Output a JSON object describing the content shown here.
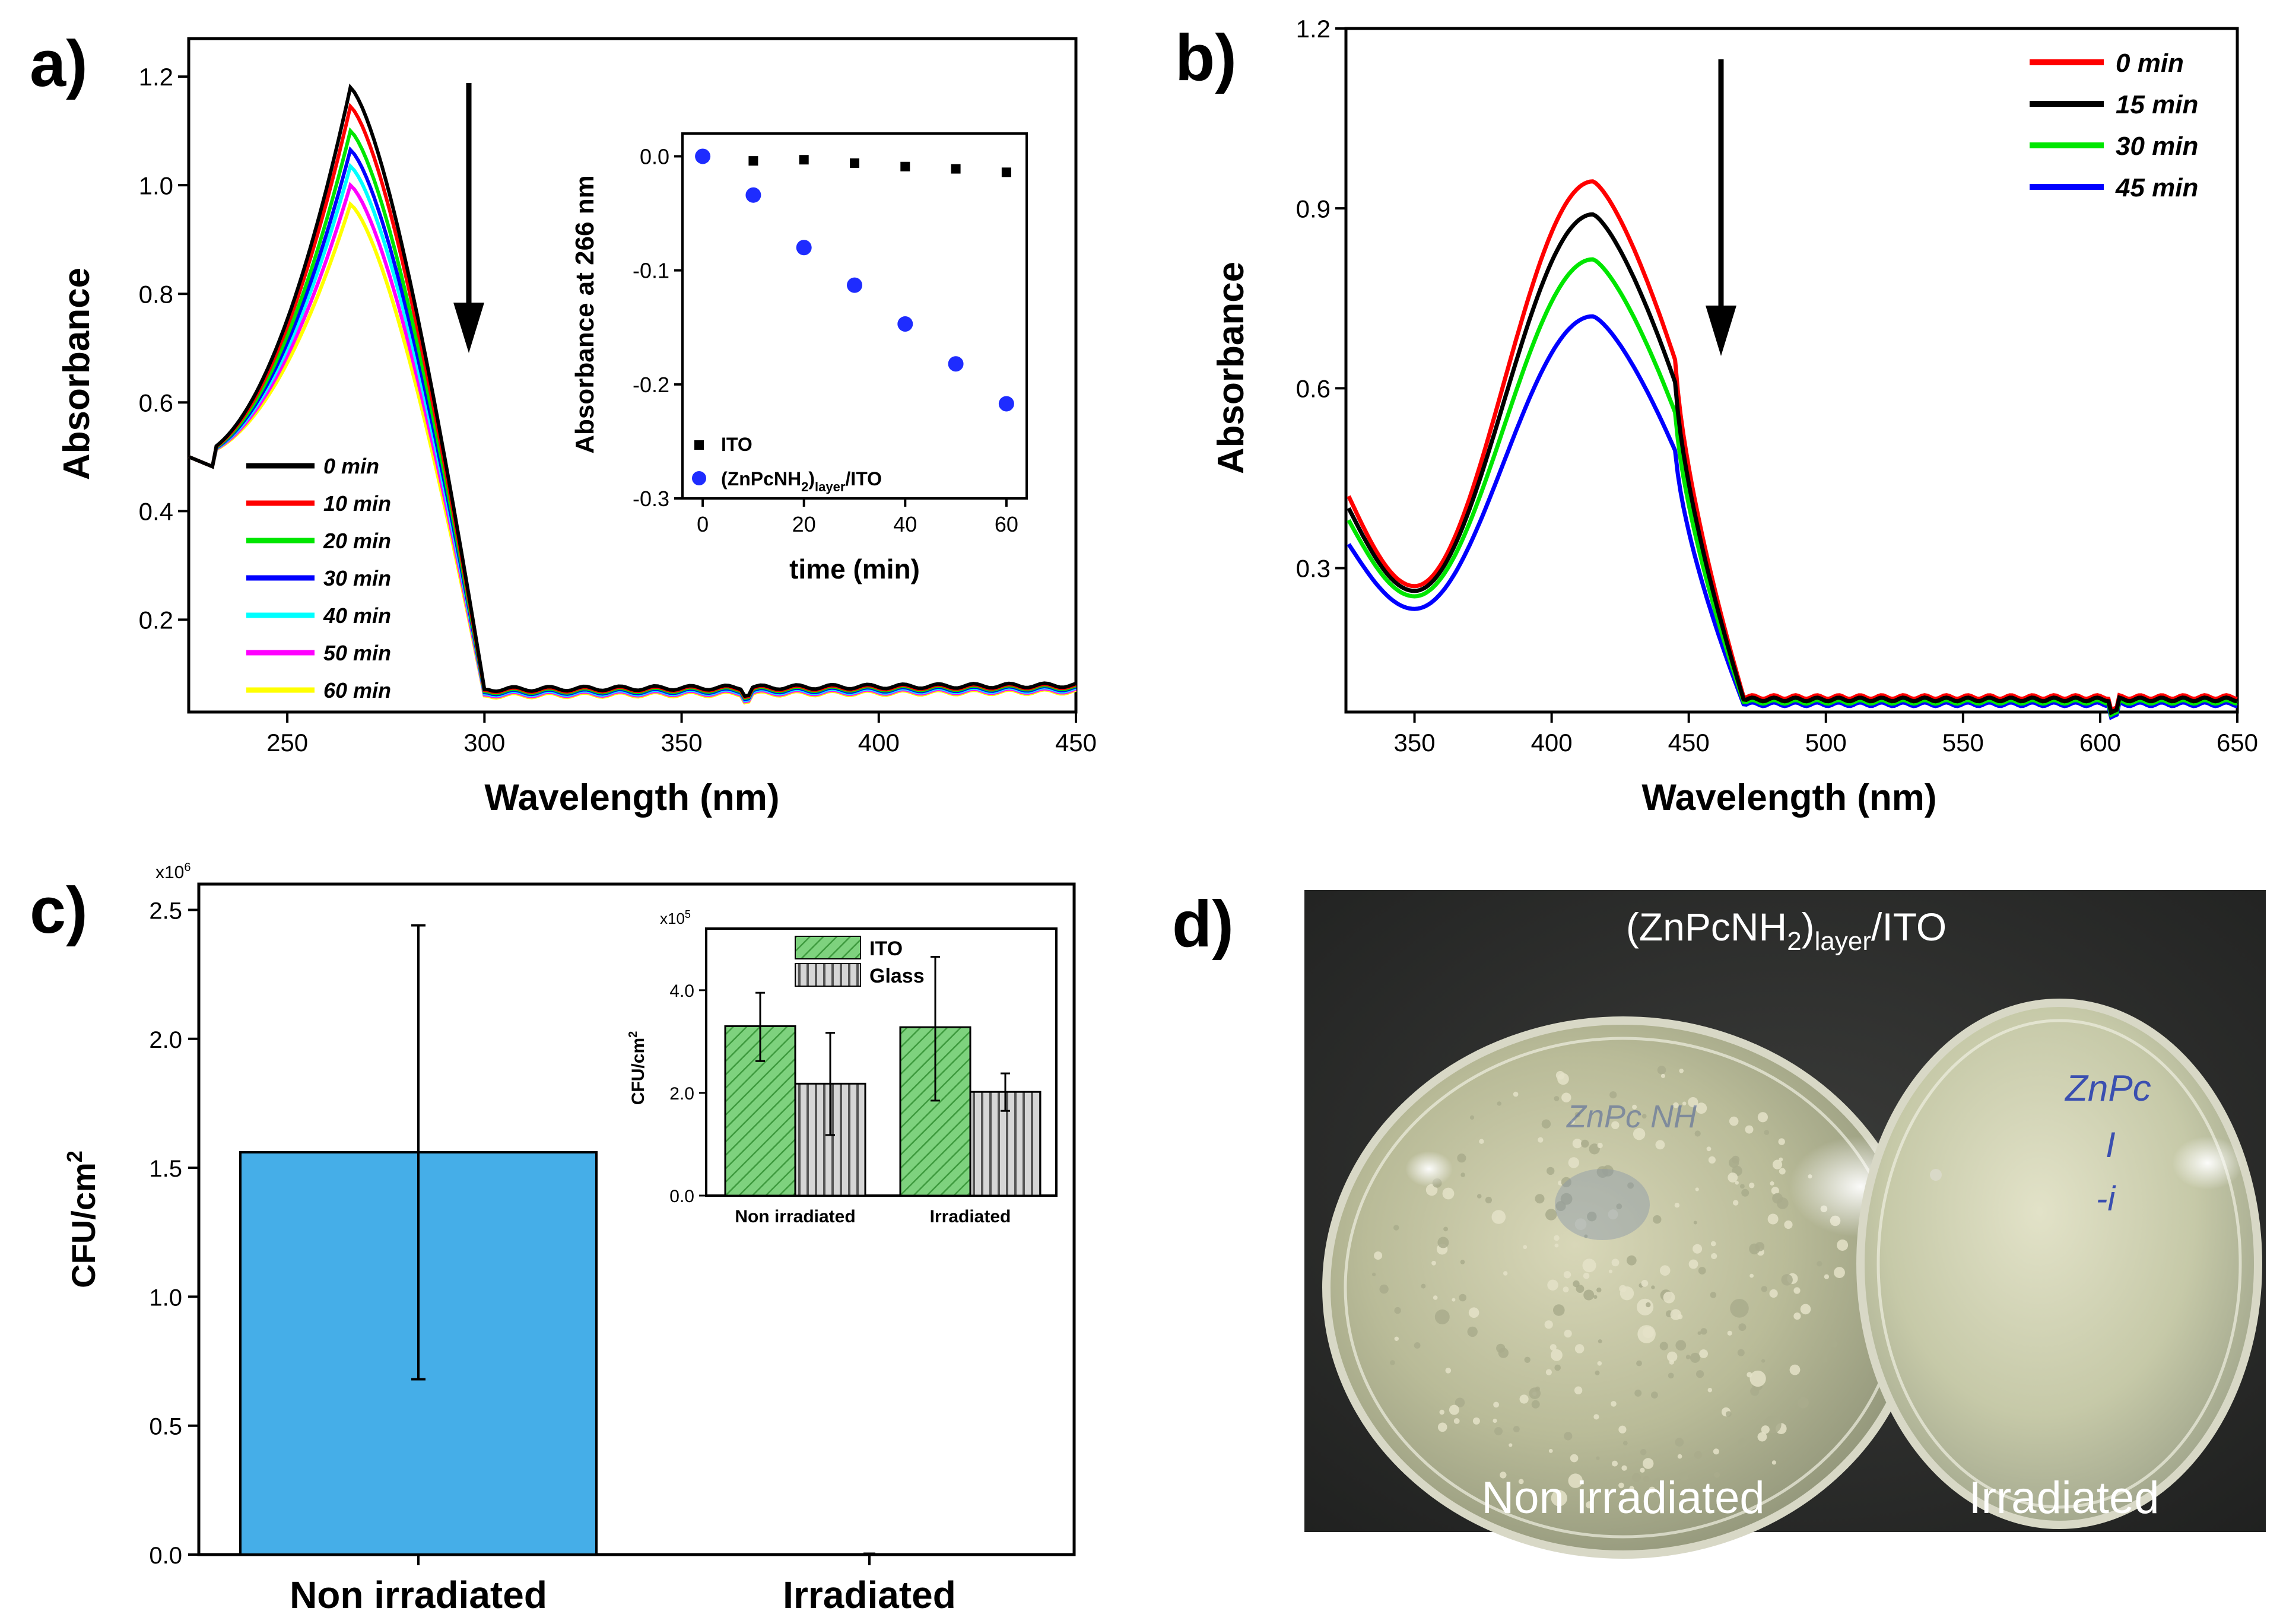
{
  "panel_labels": {
    "a": "a)",
    "b": "b)",
    "c": "c)",
    "d": "d)"
  },
  "colors": {
    "red": "#ff0000",
    "black": "#000000",
    "green": "#00e600",
    "blue": "#0000ff",
    "cyan": "#00ffff",
    "magenta": "#ff00ff",
    "yellow": "#ffff00",
    "bar_blue": "#45aee8",
    "inset_green": "#7ed27e",
    "inset_gray": "#b4b4b4",
    "marker_blue": "#1e2cff"
  },
  "chart_data": [
    {
      "id": "a",
      "type": "line",
      "title": "",
      "xlabel": "Wavelength (nm)",
      "ylabel": "Absorbance",
      "xlim": [
        225,
        450
      ],
      "ylim": [
        0.03,
        1.27
      ],
      "xticks": [
        250,
        300,
        350,
        400,
        450
      ],
      "xtick_labels": [
        "250",
        "300",
        "350",
        "400",
        "450"
      ],
      "yticks": [
        0.2,
        0.4,
        0.6,
        0.8,
        1.0,
        1.2
      ],
      "ytick_labels": [
        "0.2",
        "0.4",
        "0.6",
        "0.8",
        "1.0",
        "1.2"
      ],
      "series": [
        {
          "name": "0 min",
          "color": "#000000",
          "peak": 1.18
        },
        {
          "name": "10 min",
          "color": "#ff0000",
          "peak": 1.145
        },
        {
          "name": "20 min",
          "color": "#00e600",
          "peak": 1.1
        },
        {
          "name": "30 min",
          "color": "#0000ff",
          "peak": 1.065
        },
        {
          "name": "40 min",
          "color": "#00ffff",
          "peak": 1.035
        },
        {
          "name": "50 min",
          "color": "#ff00ff",
          "peak": 1.0
        },
        {
          "name": "60 min",
          "color": "#ffff00",
          "peak": 0.965
        }
      ],
      "legend_placement": "bottom-left",
      "annotation": "downward arrow: absorbance decreases with time",
      "inset": {
        "type": "scatter",
        "xlabel": "time (min)",
        "ylabel": "Absorbance at 266 nm",
        "xlim": [
          -4,
          64
        ],
        "ylim": [
          -0.3,
          0.02
        ],
        "xticks": [
          0,
          20,
          40,
          60
        ],
        "xtick_labels": [
          "0",
          "20",
          "40",
          "60"
        ],
        "yticks": [
          0.0,
          -0.1,
          -0.2,
          -0.3
        ],
        "ytick_labels": [
          "0.0",
          "-0.1",
          "-0.2",
          "-0.3"
        ],
        "series": [
          {
            "name": "ITO",
            "marker": "square",
            "color": "#000000",
            "x": [
              0,
              10,
              20,
              30,
              40,
              50,
              60
            ],
            "y": [
              0.0,
              -0.004,
              -0.003,
              -0.006,
              -0.009,
              -0.011,
              -0.014
            ]
          },
          {
            "name": "(ZnPcNH2)layer/ITO",
            "marker": "circle",
            "color": "#1e2cff",
            "x": [
              0,
              10,
              20,
              30,
              40,
              50,
              60
            ],
            "y": [
              0.0,
              -0.034,
              -0.08,
              -0.113,
              -0.147,
              -0.182,
              -0.217
            ]
          }
        ],
        "legend": [
          {
            "main": "ITO"
          },
          {
            "main": "(ZnPcNH",
            "sub1": "2",
            "mid": ")",
            "sub2": "layer",
            "tail": "/ITO"
          }
        ]
      }
    },
    {
      "id": "b",
      "type": "line",
      "title": "",
      "xlabel": "Wavelength (nm)",
      "ylabel": "Absorbance",
      "xlim": [
        325,
        650
      ],
      "ylim": [
        0.06,
        1.2
      ],
      "xticks": [
        350,
        400,
        450,
        500,
        550,
        600,
        650
      ],
      "xtick_labels": [
        "350",
        "400",
        "450",
        "500",
        "550",
        "600",
        "650"
      ],
      "yticks": [
        0.3,
        0.6,
        0.9,
        1.2
      ],
      "ytick_labels": [
        "0.3",
        "0.6",
        "0.9",
        "1.2"
      ],
      "series": [
        {
          "name": "0 min",
          "color": "#ff0000",
          "peak": 0.945,
          "start": 0.42,
          "min": 0.27
        },
        {
          "name": "15 min",
          "color": "#000000",
          "peak": 0.89,
          "start": 0.4,
          "min": 0.262
        },
        {
          "name": "30 min",
          "color": "#00e600",
          "peak": 0.815,
          "start": 0.38,
          "min": 0.253
        },
        {
          "name": "45 min",
          "color": "#0000ff",
          "peak": 0.72,
          "start": 0.34,
          "min": 0.232
        }
      ],
      "legend_placement": "top-right",
      "annotation": "downward arrow: absorbance decreases with time"
    },
    {
      "id": "c",
      "type": "bar",
      "title": "",
      "xlabel": "",
      "ylabel_main": "CFU/cm",
      "ylabel_sup": "2",
      "multiplier": "x10",
      "multiplier_exp": "6",
      "categories": [
        "Non irradiated",
        "Irradiated"
      ],
      "values": [
        1.56,
        0.0
      ],
      "errors_low": [
        0.68,
        0.0
      ],
      "errors_high": [
        2.44,
        0.0
      ],
      "ylim": [
        0,
        2.6
      ],
      "yticks": [
        0.0,
        0.5,
        1.0,
        1.5,
        2.0,
        2.5
      ],
      "ytick_labels": [
        "0.0",
        "0.5",
        "1.0",
        "1.5",
        "2.0",
        "2.5"
      ],
      "inset": {
        "type": "bar",
        "ylabel_main": "CFU/cm",
        "ylabel_sup": "2",
        "multiplier": "x10",
        "multiplier_exp": "5",
        "categories": [
          "Non irradiated",
          "Irradiated"
        ],
        "series": [
          {
            "name": "ITO",
            "pattern": "diagonal",
            "values": [
              3.3,
              3.28
            ],
            "errors_low": [
              2.62,
              1.85
            ],
            "errors_high": [
              3.95,
              4.65
            ]
          },
          {
            "name": "Glass",
            "pattern": "vertical",
            "values": [
              2.18,
              2.02
            ],
            "errors_low": [
              1.18,
              1.65
            ],
            "errors_high": [
              3.17,
              2.38
            ]
          }
        ],
        "ylim": [
          0,
          5.2
        ],
        "yticks": [
          0.0,
          2.0,
          4.0
        ],
        "ytick_labels": [
          "0.0",
          "2.0",
          "4.0"
        ]
      }
    }
  ],
  "photo_d": {
    "title_main": "(ZnPcNH",
    "title_sub1": "2",
    "title_mid": ")",
    "title_sub2": "layer",
    "title_tail": "/ITO",
    "left_label": "Non irradiated",
    "right_label": "Irradiated",
    "scribble_left": "ZnPc NH",
    "scribble_right_1": "ZnPc",
    "scribble_right_2": "I",
    "scribble_right_3": "-i"
  }
}
